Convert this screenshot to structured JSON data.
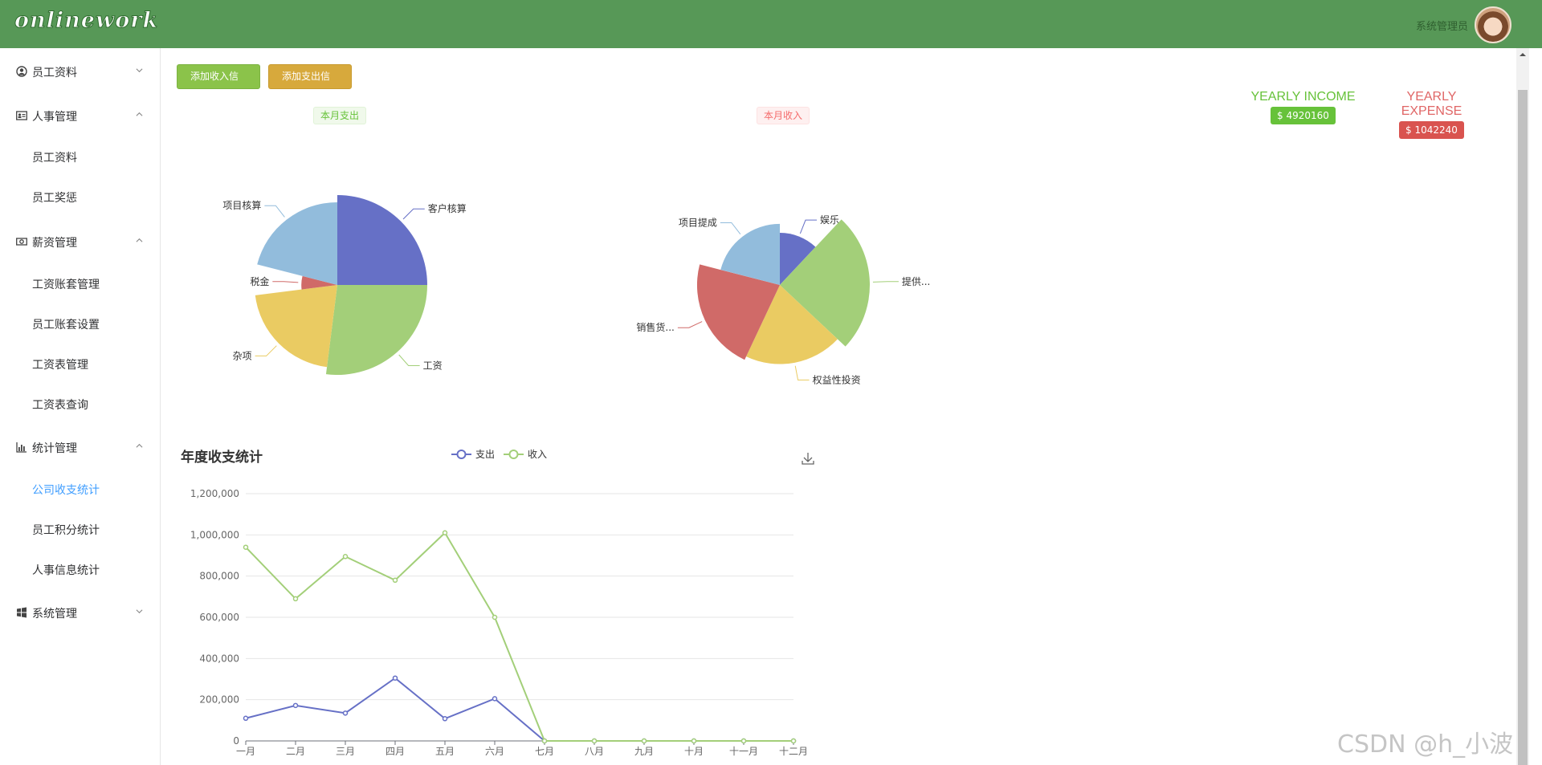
{
  "app": {
    "logo": "onlinework",
    "user_name": "系统管理员"
  },
  "sidebar": [
    {
      "label": "员工资料",
      "icon": "user-circle-icon",
      "expanded": false,
      "items": []
    },
    {
      "label": "人事管理",
      "icon": "id-card-icon",
      "expanded": true,
      "items": [
        "员工资料",
        "员工奖惩"
      ]
    },
    {
      "label": "薪资管理",
      "icon": "money-icon",
      "expanded": true,
      "items": [
        "工资账套管理",
        "员工账套设置",
        "工资表管理",
        "工资表查询"
      ]
    },
    {
      "label": "统计管理",
      "icon": "bar-chart-icon",
      "expanded": true,
      "items": [
        "公司收支统计",
        "员工积分统计",
        "人事信息统计"
      ]
    },
    {
      "label": "系统管理",
      "icon": "windows-icon",
      "expanded": false,
      "items": []
    }
  ],
  "active_item": "公司收支统计",
  "buttons": {
    "add_income": "添加收入信息",
    "add_expense": "添加支出信息"
  },
  "tags": {
    "monthly_expense": "本月支出",
    "monthly_income": "本月收入"
  },
  "yearly": {
    "income_title": "YEARLY INCOME",
    "income_value": "$ 4920160",
    "expense_title": "YEARLY EXPENSE",
    "expense_value": "$ 1042240"
  },
  "colors": {
    "blue": "#6670c6",
    "green": "#a3cf79",
    "yellow": "#eacb62",
    "red": "#d06a68",
    "lightblue": "#92bcdc",
    "header": "#579857"
  },
  "chart_data": [
    {
      "type": "pie",
      "rose": "radius",
      "slices": [
        {
          "name": "客户核算",
          "angle_share": 0.25,
          "radius_share": 1.0,
          "color": "#6670c6"
        },
        {
          "name": "工资",
          "angle_share": 0.27,
          "radius_share": 1.0,
          "color": "#a3cf79"
        },
        {
          "name": "杂项",
          "angle_share": 0.21,
          "radius_share": 0.92,
          "color": "#eacb62"
        },
        {
          "name": "税金",
          "angle_share": 0.06,
          "radius_share": 0.4,
          "color": "#d06a68"
        },
        {
          "name": "项目核算",
          "angle_share": 0.21,
          "radius_share": 0.92,
          "color": "#92bcdc"
        }
      ]
    },
    {
      "type": "pie",
      "rose": "radius",
      "slices": [
        {
          "name": "娱乐",
          "angle_share": 0.12,
          "radius_share": 0.58,
          "color": "#6670c6"
        },
        {
          "name": "提供...",
          "angle_share": 0.25,
          "radius_share": 1.0,
          "color": "#a3cf79"
        },
        {
          "name": "权益性投资",
          "angle_share": 0.2,
          "radius_share": 0.88,
          "color": "#eacb62"
        },
        {
          "name": "销售货...",
          "angle_share": 0.22,
          "radius_share": 0.92,
          "color": "#d06a68"
        },
        {
          "name": "项目提成",
          "angle_share": 0.21,
          "radius_share": 0.68,
          "color": "#92bcdc"
        }
      ]
    },
    {
      "type": "line",
      "title": "年度收支统计",
      "categories": [
        "一月",
        "二月",
        "三月",
        "四月",
        "五月",
        "六月",
        "七月",
        "八月",
        "九月",
        "十月",
        "十一月",
        "十二月"
      ],
      "series": [
        {
          "name": "支出",
          "color": "#6670c6",
          "values": [
            110000,
            172000,
            135000,
            305000,
            108000,
            205000,
            0,
            0,
            0,
            0,
            0,
            0
          ]
        },
        {
          "name": "收入",
          "color": "#a3cf79",
          "values": [
            940000,
            690000,
            895000,
            780000,
            1010000,
            600000,
            0,
            0,
            0,
            0,
            0,
            0
          ]
        }
      ],
      "ylim": [
        0,
        1200000
      ],
      "yticks": [
        "0",
        "200,000",
        "400,000",
        "600,000",
        "800,000",
        "1,000,000",
        "1,200,000"
      ],
      "legend": "top-center",
      "grid": true
    }
  ],
  "watermark": "CSDN @h_小波"
}
